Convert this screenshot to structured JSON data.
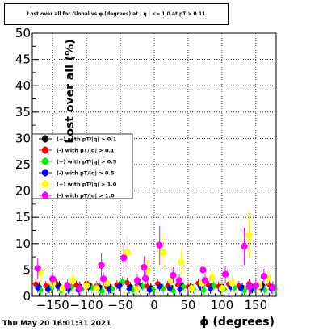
{
  "chart_data": {
    "type": "scatter",
    "title": "Lost over all for Global vs φ (degrees) at | η | <= 1.0 at pT > 0.11",
    "xlabel": "ϕ (degrees)",
    "ylabel": "Lost over all (%)",
    "xlim": [
      -180,
      180
    ],
    "ylim": [
      0,
      50
    ],
    "x_ticks": [
      -150,
      -100,
      -50,
      0,
      50,
      100,
      150
    ],
    "x_tick_labels": [
      "−150",
      "−100",
      "−50",
      "0",
      "50",
      "100",
      "150"
    ],
    "y_ticks": [
      0,
      5,
      10,
      15,
      20,
      25,
      30,
      35,
      40,
      45,
      50
    ],
    "y_tick_labels": [
      "0",
      "5",
      "10",
      "15",
      "20",
      "25",
      "30",
      "35",
      "40",
      "45",
      "50"
    ],
    "grid": true,
    "legend_position": "middle-left",
    "footer": "Thu May 20 16:01:31 2021",
    "series": [
      {
        "name": "(+) with pT/|q| > 0.1",
        "color": "#000000",
        "points": [
          [
            -170,
            1.8
          ],
          [
            -155,
            1.5
          ],
          [
            -140,
            2.0
          ],
          [
            -125,
            1.6
          ],
          [
            -110,
            1.9
          ],
          [
            -95,
            2.1
          ],
          [
            -80,
            1.7
          ],
          [
            -65,
            1.5
          ],
          [
            -50,
            2.2
          ],
          [
            -35,
            1.8
          ],
          [
            -20,
            2.0
          ],
          [
            -5,
            1.6
          ],
          [
            10,
            1.9
          ],
          [
            25,
            1.7
          ],
          [
            40,
            2.3
          ],
          [
            55,
            1.8
          ],
          [
            70,
            1.6
          ],
          [
            85,
            2.0
          ],
          [
            100,
            1.9
          ],
          [
            115,
            2.2
          ],
          [
            130,
            1.7
          ],
          [
            145,
            1.5
          ],
          [
            160,
            2.0
          ],
          [
            175,
            1.8
          ]
        ]
      },
      {
        "name": "(-) with pT/|q| > 0.1",
        "color": "#ff0000",
        "points": [
          [
            -175,
            2.3
          ],
          [
            -160,
            2.0
          ],
          [
            -145,
            2.4
          ],
          [
            -130,
            1.9
          ],
          [
            -115,
            2.1
          ],
          [
            -100,
            2.5
          ],
          [
            -85,
            2.0
          ],
          [
            -70,
            1.8
          ],
          [
            -55,
            2.2
          ],
          [
            -40,
            2.6
          ],
          [
            -25,
            2.1
          ],
          [
            -10,
            1.9
          ],
          [
            5,
            2.4
          ],
          [
            20,
            2.0
          ],
          [
            35,
            2.2
          ],
          [
            50,
            1.8
          ],
          [
            65,
            2.5
          ],
          [
            80,
            2.1
          ],
          [
            95,
            1.9
          ],
          [
            110,
            2.3
          ],
          [
            125,
            2.0
          ],
          [
            140,
            2.4
          ],
          [
            155,
            1.8
          ],
          [
            170,
            2.2
          ]
        ]
      },
      {
        "name": "(+) with pT/|q| > 0.5",
        "color": "#00ee00",
        "points": [
          [
            -168,
            1.2
          ],
          [
            -152,
            1.5
          ],
          [
            -137,
            1.1
          ],
          [
            -122,
            1.8
          ],
          [
            -107,
            1.3
          ],
          [
            -92,
            1.6
          ],
          [
            -77,
            1.0
          ],
          [
            -62,
            1.4
          ],
          [
            -47,
            2.8
          ],
          [
            -32,
            1.2
          ],
          [
            -17,
            1.9
          ],
          [
            -2,
            1.3
          ],
          [
            13,
            1.5
          ],
          [
            28,
            1.1
          ],
          [
            43,
            1.8
          ],
          [
            58,
            1.4
          ],
          [
            73,
            1.2
          ],
          [
            88,
            2.0
          ],
          [
            103,
            1.3
          ],
          [
            118,
            1.6
          ],
          [
            133,
            1.1
          ],
          [
            148,
            1.5
          ],
          [
            163,
            1.2
          ],
          [
            178,
            1.4
          ]
        ]
      },
      {
        "name": "(-) with pT/|q| > 0.5",
        "color": "#0000ff",
        "points": [
          [
            -172,
            1.6
          ],
          [
            -157,
            1.3
          ],
          [
            -142,
            1.8
          ],
          [
            -127,
            1.4
          ],
          [
            -112,
            1.2
          ],
          [
            -97,
            1.7
          ],
          [
            -82,
            1.5
          ],
          [
            -67,
            1.3
          ],
          [
            -52,
            1.9
          ],
          [
            -37,
            1.4
          ],
          [
            -22,
            1.6
          ],
          [
            -7,
            1.2
          ],
          [
            8,
            1.8
          ],
          [
            23,
            1.5
          ],
          [
            38,
            1.3
          ],
          [
            53,
            1.6
          ],
          [
            68,
            1.9
          ],
          [
            83,
            1.4
          ],
          [
            98,
            1.2
          ],
          [
            113,
            1.7
          ],
          [
            128,
            1.5
          ],
          [
            143,
            1.3
          ],
          [
            158,
            1.6
          ],
          [
            173,
            1.4
          ]
        ]
      },
      {
        "name": "(+) with pT/|q| > 1.0",
        "color": "#ffff00",
        "points": [
          [
            -168,
            4.5
          ],
          [
            -150,
            2.5
          ],
          [
            -135,
            1.5
          ],
          [
            -120,
            3.0
          ],
          [
            -100,
            2.0
          ],
          [
            -85,
            1.5
          ],
          [
            -70,
            2.5
          ],
          [
            -40,
            8.3
          ],
          [
            -25,
            1.5
          ],
          [
            -10,
            5.0
          ],
          [
            13,
            8.3
          ],
          [
            25,
            3.0
          ],
          [
            40,
            6.5
          ],
          [
            55,
            1.5
          ],
          [
            70,
            2.5
          ],
          [
            85,
            3.5
          ],
          [
            100,
            1.5
          ],
          [
            115,
            2.5
          ],
          [
            140,
            11.6
          ],
          [
            155,
            2.0
          ],
          [
            168,
            3.5
          ]
        ]
      },
      {
        "name": "(-) with pT/|q| > 1.0",
        "color": "#ff00ff",
        "points": [
          [
            -172,
            5.3
          ],
          [
            -150,
            3.3
          ],
          [
            -128,
            2.0
          ],
          [
            -110,
            1.5
          ],
          [
            -78,
            5.9
          ],
          [
            -75,
            3.3
          ],
          [
            -45,
            7.3
          ],
          [
            -25,
            3.0
          ],
          [
            -15,
            5.5
          ],
          [
            -13,
            3.4
          ],
          [
            8,
            9.7
          ],
          [
            28,
            4.0
          ],
          [
            37,
            3.0
          ],
          [
            72,
            5.0
          ],
          [
            75,
            3.0
          ],
          [
            105,
            4.2
          ],
          [
            133,
            9.5
          ],
          [
            140,
            1.8
          ],
          [
            150,
            2.0
          ],
          [
            162,
            3.8
          ],
          [
            175,
            1.6
          ]
        ]
      }
    ]
  }
}
